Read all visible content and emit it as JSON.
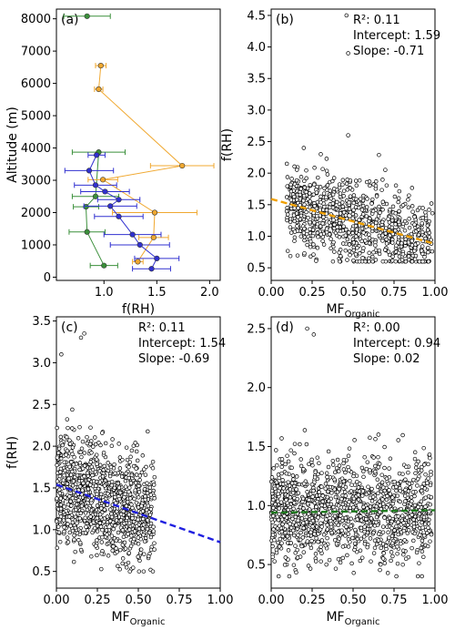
{
  "colors": {
    "green": "#3a8f3a",
    "orange": "#f0a830",
    "blue": "#3030d0",
    "orange_fit": "#f0a000",
    "blue_fit": "#2020e0",
    "green_fit": "#1f7a1f",
    "point": "#000000"
  },
  "chart_data": [
    {
      "panel": "a",
      "type": "scatter",
      "panel_label": "(a)",
      "xlabel": "f(RH)",
      "ylabel": "Altitude (m)",
      "xlim": [
        0.55,
        2.1
      ],
      "ylim": [
        -100,
        8300
      ],
      "xticks": [
        "1.0",
        "1.5",
        "2.0"
      ],
      "yticks": [
        "0",
        "1000",
        "2000",
        "3000",
        "4000",
        "5000",
        "6000",
        "7000",
        "8000"
      ],
      "series": [
        {
          "color": "green",
          "points": [
            {
              "x": 0.84,
              "y": 8080,
              "xerr": 0.22
            },
            {
              "x": 0.95,
              "y": 3870,
              "xerr": 0.25
            },
            {
              "x": 0.92,
              "y": 2500,
              "xerr": 0.22
            },
            {
              "x": 0.83,
              "y": 2180,
              "xerr": 0.12
            },
            {
              "x": 0.84,
              "y": 1400,
              "xerr": 0.17
            },
            {
              "x": 1.0,
              "y": 360,
              "xerr": 0.13
            }
          ]
        },
        {
          "color": "orange",
          "points": [
            {
              "x": 0.97,
              "y": 6550,
              "xerr": 0.05
            },
            {
              "x": 0.95,
              "y": 5820,
              "xerr": 0.04
            },
            {
              "x": 1.74,
              "y": 3450,
              "xerr": 0.3
            },
            {
              "x": 0.99,
              "y": 3020,
              "xerr": 0.14
            },
            {
              "x": 1.48,
              "y": 2000,
              "xerr": 0.4
            },
            {
              "x": 1.47,
              "y": 1230,
              "xerr": 0.14
            },
            {
              "x": 1.32,
              "y": 480,
              "xerr": 0.05
            }
          ]
        },
        {
          "color": "blue",
          "points": [
            {
              "x": 0.93,
              "y": 3780,
              "xerr": 0.08
            },
            {
              "x": 0.86,
              "y": 3300,
              "xerr": 0.23
            },
            {
              "x": 0.92,
              "y": 2850,
              "xerr": 0.2
            },
            {
              "x": 1.01,
              "y": 2650,
              "xerr": 0.23
            },
            {
              "x": 1.14,
              "y": 2400,
              "xerr": 0.2
            },
            {
              "x": 1.06,
              "y": 2200,
              "xerr": 0.25
            },
            {
              "x": 1.14,
              "y": 1880,
              "xerr": 0.23
            },
            {
              "x": 1.27,
              "y": 1320,
              "xerr": 0.27
            },
            {
              "x": 1.34,
              "y": 1000,
              "xerr": 0.28
            },
            {
              "x": 1.5,
              "y": 580,
              "xerr": 0.21
            },
            {
              "x": 1.45,
              "y": 260,
              "xerr": 0.18
            }
          ]
        }
      ]
    },
    {
      "panel": "b",
      "type": "scatter",
      "panel_label": "(b)",
      "xlabel": "MF",
      "xlabel_sub": "Organic",
      "ylabel": "f(RH)",
      "xlim": [
        0,
        1
      ],
      "ylim": [
        0.3,
        4.6
      ],
      "xticks": [
        "0.00",
        "0.25",
        "0.50",
        "0.75",
        "1.00"
      ],
      "yticks": [
        "0.5",
        "1.0",
        "1.5",
        "2.0",
        "2.5",
        "3.0",
        "3.5",
        "4.0",
        "4.5"
      ],
      "stats": [
        "R²: 0.11",
        "Intercept: 1.59",
        "Slope: -0.71"
      ],
      "fit": {
        "intercept": 1.59,
        "slope": -0.71,
        "color": "orange_fit"
      },
      "outliers": [
        {
          "x": 0.46,
          "y": 4.5
        },
        {
          "x": 0.47,
          "y": 3.9
        },
        {
          "x": 0.47,
          "y": 2.6
        }
      ],
      "cloud": {
        "n": 900,
        "xmin": 0.1,
        "xmax": 0.98,
        "ymin": 0.6,
        "ymax": 2.4,
        "center": 1.35
      }
    },
    {
      "panel": "c",
      "type": "scatter",
      "panel_label": "(c)",
      "xlabel": "MF",
      "xlabel_sub": "Organic",
      "ylabel": "f(RH)",
      "xlim": [
        0,
        1
      ],
      "ylim": [
        0.3,
        3.55
      ],
      "xticks": [
        "0.00",
        "0.25",
        "0.50",
        "0.75",
        "1.00"
      ],
      "yticks": [
        "0.5",
        "1.0",
        "1.5",
        "2.0",
        "2.5",
        "3.0",
        "3.5"
      ],
      "stats": [
        "R²: 0.11",
        "Intercept: 1.54",
        "Slope: -0.69"
      ],
      "fit": {
        "intercept": 1.54,
        "slope": -0.69,
        "color": "blue_fit"
      },
      "outliers": [
        {
          "x": 0.17,
          "y": 3.35
        },
        {
          "x": 0.15,
          "y": 3.3
        },
        {
          "x": 0.03,
          "y": 3.1
        }
      ],
      "cloud": {
        "n": 1100,
        "xmin": 0.0,
        "xmax": 0.6,
        "ymin": 0.5,
        "ymax": 2.8,
        "center": 1.35
      }
    },
    {
      "panel": "d",
      "type": "scatter",
      "panel_label": "(d)",
      "xlabel": "MF",
      "xlabel_sub": "Organic",
      "ylabel": "",
      "xlim": [
        0,
        1
      ],
      "ylim": [
        0.3,
        2.6
      ],
      "xticks": [
        "0.00",
        "0.25",
        "0.50",
        "0.75",
        "1.00"
      ],
      "yticks": [
        "0.5",
        "1.0",
        "1.5",
        "2.0",
        "2.5"
      ],
      "stats": [
        "R²: 0.00",
        "Intercept: 0.94",
        "Slope: 0.02"
      ],
      "fit": {
        "intercept": 0.94,
        "slope": 0.02,
        "color": "green_fit"
      },
      "outliers": [
        {
          "x": 0.22,
          "y": 2.5
        },
        {
          "x": 0.26,
          "y": 2.45
        }
      ],
      "cloud": {
        "n": 1300,
        "xmin": 0.0,
        "xmax": 0.98,
        "ymin": 0.4,
        "ymax": 2.1,
        "center": 0.95
      }
    }
  ]
}
